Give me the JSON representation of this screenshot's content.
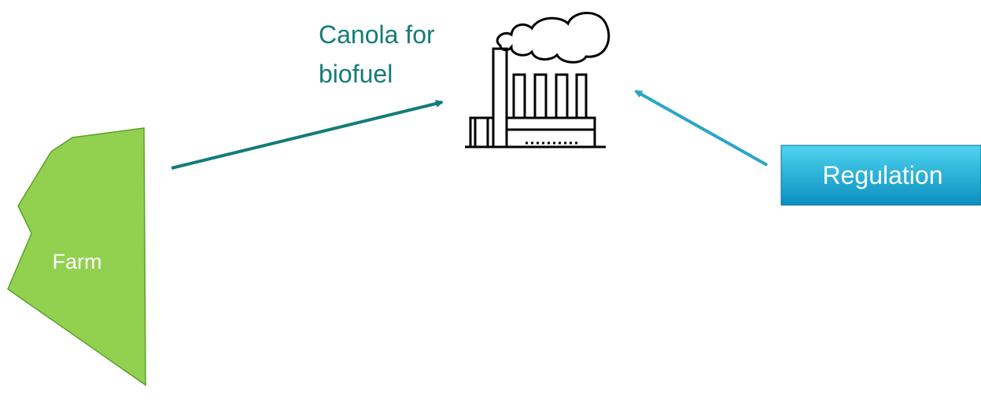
{
  "nodes": [
    {
      "label": "Farm"
    },
    {
      "label": "Canola for biofuel"
    },
    {
      "label": "Regulation"
    }
  ]
}
